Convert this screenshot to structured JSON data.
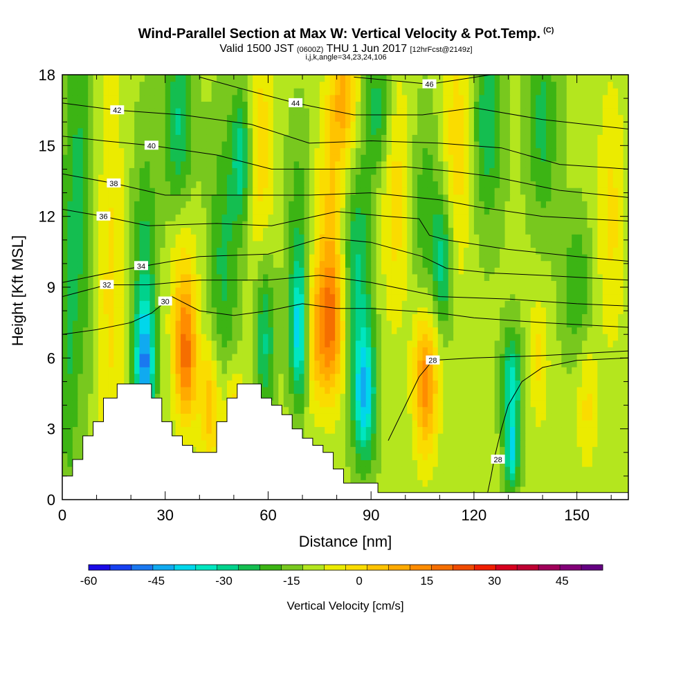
{
  "header": {
    "title": "Wind-Parallel Section at Max W: Vertical Velocity & Pot.Temp.",
    "copyright": "(C)",
    "valid_prefix": "Valid 1500 JST",
    "valid_utc": "(0600Z)",
    "valid_date": "THU 1 Jun 2017",
    "fcst": "[12hrFcst@2149z]",
    "indices": "i,j,k,angle=34,23,24,106"
  },
  "chart_data": {
    "type": "heatmap",
    "xlabel": "Distance [nm]",
    "ylabel": "Height [Kft MSL]",
    "xlim": [
      0,
      165
    ],
    "ylim": [
      0,
      18
    ],
    "x_ticks": [
      0,
      30,
      60,
      90,
      120,
      150
    ],
    "y_ticks": [
      0,
      3,
      6,
      9,
      12,
      15,
      18
    ],
    "colorbar": {
      "label": "Vertical Velocity [cm/s]",
      "min": -60,
      "max": 54,
      "step": 6,
      "tick_values": [
        -60,
        -45,
        -30,
        -15,
        0,
        15,
        30,
        45
      ],
      "colors": [
        "#1a0ae6",
        "#1740f0",
        "#1a78f0",
        "#10aaf0",
        "#00d7eb",
        "#00e6c0",
        "#00d28c",
        "#14be50",
        "#3cb414",
        "#78c81e",
        "#b4e61e",
        "#ebeb00",
        "#fadc00",
        "#ffc300",
        "#ffaa00",
        "#ff8c00",
        "#f56e00",
        "#f04b00",
        "#f01e00",
        "#d7001e",
        "#be0032",
        "#a0005a",
        "#820078",
        "#640082"
      ]
    },
    "terrain_kft": [
      [
        0,
        1.0
      ],
      [
        3,
        1.0
      ],
      [
        3,
        1.7
      ],
      [
        6,
        1.7
      ],
      [
        6,
        2.7
      ],
      [
        9,
        2.7
      ],
      [
        9,
        3.3
      ],
      [
        12,
        3.3
      ],
      [
        12,
        4.3
      ],
      [
        16,
        4.3
      ],
      [
        16,
        4.9
      ],
      [
        26,
        4.9
      ],
      [
        26,
        4.3
      ],
      [
        29,
        4.3
      ],
      [
        29,
        3.3
      ],
      [
        32,
        3.3
      ],
      [
        32,
        2.7
      ],
      [
        35,
        2.7
      ],
      [
        35,
        2.3
      ],
      [
        38,
        2.3
      ],
      [
        38,
        2.0
      ],
      [
        45,
        2.0
      ],
      [
        45,
        3.3
      ],
      [
        48,
        3.3
      ],
      [
        48,
        4.3
      ],
      [
        51,
        4.3
      ],
      [
        51,
        4.9
      ],
      [
        58,
        4.9
      ],
      [
        58,
        4.3
      ],
      [
        61,
        4.3
      ],
      [
        61,
        4.0
      ],
      [
        64,
        4.0
      ],
      [
        64,
        3.6
      ],
      [
        67,
        3.6
      ],
      [
        67,
        3.0
      ],
      [
        70,
        3.0
      ],
      [
        70,
        2.6
      ],
      [
        73,
        2.6
      ],
      [
        73,
        2.3
      ],
      [
        76,
        2.3
      ],
      [
        76,
        2.0
      ],
      [
        79,
        2.0
      ],
      [
        79,
        1.3
      ],
      [
        82,
        1.3
      ],
      [
        82,
        0.7
      ],
      [
        92,
        0.7
      ],
      [
        92,
        0.3
      ],
      [
        165,
        0.3
      ]
    ],
    "w_features": [
      {
        "x": 1.5,
        "y": 6,
        "sx": 1.8,
        "sy": 5,
        "w": -10
      },
      {
        "x": 5,
        "y": 13,
        "sx": 3,
        "sy": 6,
        "w": -15
      },
      {
        "x": 14,
        "y": 9,
        "sx": 3,
        "sy": 7,
        "w": 12
      },
      {
        "x": 24,
        "y": 5.6,
        "sx": 2,
        "sy": 1.8,
        "w": -34
      },
      {
        "x": 24,
        "y": 9,
        "sx": 2.5,
        "sy": 4,
        "w": -18
      },
      {
        "x": 36,
        "y": 6.0,
        "sx": 2.3,
        "sy": 2,
        "w": 32
      },
      {
        "x": 35,
        "y": 10,
        "sx": 3,
        "sy": 3,
        "w": 14
      },
      {
        "x": 34,
        "y": 15.5,
        "sx": 3,
        "sy": 3,
        "w": -22
      },
      {
        "x": 43,
        "y": 4.0,
        "sx": 2,
        "sy": 1.8,
        "w": 22
      },
      {
        "x": 47,
        "y": 10,
        "sx": 3,
        "sy": 4,
        "w": -15
      },
      {
        "x": 52,
        "y": 14.5,
        "sx": 2,
        "sy": 2,
        "w": -22
      },
      {
        "x": 50,
        "y": 3.8,
        "sx": 2.5,
        "sy": 1.5,
        "w": 15
      },
      {
        "x": 58,
        "y": 14.5,
        "sx": 2.5,
        "sy": 4,
        "w": 14
      },
      {
        "x": 59,
        "y": 7,
        "sx": 2,
        "sy": 2.5,
        "w": -22
      },
      {
        "x": 69,
        "y": 7,
        "sx": 1.8,
        "sy": 2,
        "w": -34
      },
      {
        "x": 69,
        "y": 11.5,
        "sx": 2.5,
        "sy": 3,
        "w": -12
      },
      {
        "x": 73,
        "y": 7,
        "sx": 2,
        "sy": 2,
        "w": 15
      },
      {
        "x": 78,
        "y": 7.3,
        "sx": 2.8,
        "sy": 2.2,
        "w": 34
      },
      {
        "x": 78,
        "y": 12,
        "sx": 3,
        "sy": 3,
        "w": 16
      },
      {
        "x": 82,
        "y": 17,
        "sx": 3,
        "sy": 2,
        "w": 24
      },
      {
        "x": 86,
        "y": 10,
        "sx": 3,
        "sy": 3,
        "w": -20
      },
      {
        "x": 88,
        "y": 4.5,
        "sx": 2.3,
        "sy": 2,
        "w": -38
      },
      {
        "x": 92,
        "y": 16.5,
        "sx": 3,
        "sy": 2,
        "w": -18
      },
      {
        "x": 97,
        "y": 13,
        "sx": 3,
        "sy": 4,
        "w": 14
      },
      {
        "x": 106,
        "y": 5.0,
        "sx": 2.5,
        "sy": 2.2,
        "w": 32
      },
      {
        "x": 106,
        "y": 12,
        "sx": 3,
        "sy": 3,
        "w": -12
      },
      {
        "x": 111,
        "y": 10,
        "sx": 2,
        "sy": 2,
        "w": -22
      },
      {
        "x": 115,
        "y": 15,
        "sx": 3,
        "sy": 4,
        "w": 14
      },
      {
        "x": 124,
        "y": 16,
        "sx": 3,
        "sy": 3,
        "w": -18
      },
      {
        "x": 131,
        "y": 5,
        "sx": 2,
        "sy": 1.5,
        "w": -28
      },
      {
        "x": 131,
        "y": 2,
        "sx": 1.5,
        "sy": 1.2,
        "w": -30
      },
      {
        "x": 139,
        "y": 6,
        "sx": 2,
        "sy": 2,
        "w": 12
      },
      {
        "x": 140,
        "y": 16,
        "sx": 3,
        "sy": 3,
        "w": -16
      },
      {
        "x": 150,
        "y": 9,
        "sx": 3,
        "sy": 2,
        "w": -14
      },
      {
        "x": 153,
        "y": 4,
        "sx": 2,
        "sy": 2,
        "w": 12
      },
      {
        "x": 160,
        "y": 12,
        "sx": 3,
        "sy": 4,
        "w": 12
      }
    ],
    "theta_contours": [
      {
        "value": 28,
        "label_at": [
          108,
          5.9
        ],
        "points": [
          [
            95,
            2.5
          ],
          [
            100,
            4.0
          ],
          [
            104,
            5.2
          ],
          [
            108,
            5.9
          ],
          [
            120,
            6.0
          ],
          [
            140,
            6.1
          ],
          [
            165,
            6.3
          ]
        ]
      },
      {
        "value": 28,
        "label_at": [
          127,
          1.7
        ],
        "points": [
          [
            124,
            0.3
          ],
          [
            125,
            1.0
          ],
          [
            126,
            1.8
          ],
          [
            128,
            3.0
          ],
          [
            130,
            4.0
          ],
          [
            134,
            5.0
          ],
          [
            140,
            5.6
          ],
          [
            150,
            5.9
          ],
          [
            165,
            6.0
          ]
        ]
      },
      {
        "value": 30,
        "label_at": [
          30,
          8.4
        ],
        "points": [
          [
            0,
            7.0
          ],
          [
            10,
            7.2
          ],
          [
            20,
            7.5
          ],
          [
            26,
            7.9
          ],
          [
            32,
            8.6
          ],
          [
            40,
            8.0
          ],
          [
            50,
            7.8
          ],
          [
            60,
            8.0
          ],
          [
            70,
            8.3
          ],
          [
            75,
            8.2
          ],
          [
            80,
            8.1
          ],
          [
            90,
            8.1
          ],
          [
            100,
            8.0
          ],
          [
            110,
            7.9
          ],
          [
            120,
            7.7
          ],
          [
            140,
            7.5
          ],
          [
            165,
            7.3
          ]
        ]
      },
      {
        "value": 32,
        "label_at": [
          13,
          9.1
        ],
        "points": [
          [
            0,
            8.6
          ],
          [
            13,
            9.1
          ],
          [
            25,
            9.1
          ],
          [
            40,
            9.3
          ],
          [
            60,
            9.3
          ],
          [
            75,
            9.5
          ],
          [
            90,
            9.2
          ],
          [
            110,
            8.6
          ],
          [
            130,
            8.5
          ],
          [
            150,
            8.3
          ],
          [
            165,
            8.2
          ]
        ]
      },
      {
        "value": 34,
        "label_at": [
          23,
          9.9
        ],
        "points": [
          [
            0,
            9.2
          ],
          [
            20,
            9.8
          ],
          [
            40,
            10.3
          ],
          [
            60,
            10.4
          ],
          [
            76,
            11.1
          ],
          [
            90,
            10.9
          ],
          [
            105,
            10.3
          ],
          [
            112,
            9.8
          ],
          [
            125,
            9.6
          ],
          [
            140,
            9.5
          ],
          [
            165,
            9.3
          ]
        ]
      },
      {
        "value": 36,
        "label_at": [
          12,
          12.0
        ],
        "points": [
          [
            0,
            12.3
          ],
          [
            12,
            12.0
          ],
          [
            25,
            11.6
          ],
          [
            45,
            11.7
          ],
          [
            61,
            11.6
          ],
          [
            80,
            12.2
          ],
          [
            95,
            12.0
          ],
          [
            104,
            11.9
          ],
          [
            107,
            11.2
          ],
          [
            112,
            11.0
          ],
          [
            130,
            10.6
          ],
          [
            150,
            10.3
          ],
          [
            165,
            10.1
          ]
        ]
      },
      {
        "value": 38,
        "label_at": [
          15,
          13.4
        ],
        "points": [
          [
            0,
            13.8
          ],
          [
            15,
            13.4
          ],
          [
            30,
            12.9
          ],
          [
            50,
            12.9
          ],
          [
            72,
            12.9
          ],
          [
            90,
            13.0
          ],
          [
            110,
            12.7
          ],
          [
            121,
            12.4
          ],
          [
            140,
            12.0
          ],
          [
            165,
            11.8
          ]
        ]
      },
      {
        "value": 40,
        "label_at": [
          26,
          15.0
        ],
        "points": [
          [
            0,
            15.4
          ],
          [
            12,
            15.2
          ],
          [
            26,
            15.0
          ],
          [
            45,
            14.6
          ],
          [
            61,
            14.0
          ],
          [
            80,
            14.0
          ],
          [
            100,
            14.1
          ],
          [
            114,
            13.9
          ],
          [
            125,
            13.7
          ],
          [
            145,
            13.1
          ],
          [
            165,
            12.8
          ]
        ]
      },
      {
        "value": 42,
        "label_at": [
          16,
          16.5
        ],
        "points": [
          [
            0,
            16.8
          ],
          [
            16,
            16.5
          ],
          [
            35,
            16.3
          ],
          [
            55,
            15.9
          ],
          [
            72,
            15.1
          ],
          [
            90,
            15.2
          ],
          [
            110,
            15.1
          ],
          [
            128,
            14.9
          ],
          [
            145,
            14.2
          ],
          [
            165,
            14.0
          ]
        ]
      },
      {
        "value": 44,
        "label_at": [
          68,
          16.8
        ],
        "points": [
          [
            40,
            17.9
          ],
          [
            55,
            17.3
          ],
          [
            68,
            16.8
          ],
          [
            85,
            16.3
          ],
          [
            105,
            16.3
          ],
          [
            120,
            16.6
          ],
          [
            140,
            16.1
          ],
          [
            165,
            15.7
          ]
        ]
      },
      {
        "value": 46,
        "label_at": [
          107,
          17.6
        ],
        "points": [
          [
            85,
            17.9
          ],
          [
            100,
            17.7
          ],
          [
            107,
            17.6
          ],
          [
            125,
            18.0
          ]
        ]
      }
    ]
  }
}
